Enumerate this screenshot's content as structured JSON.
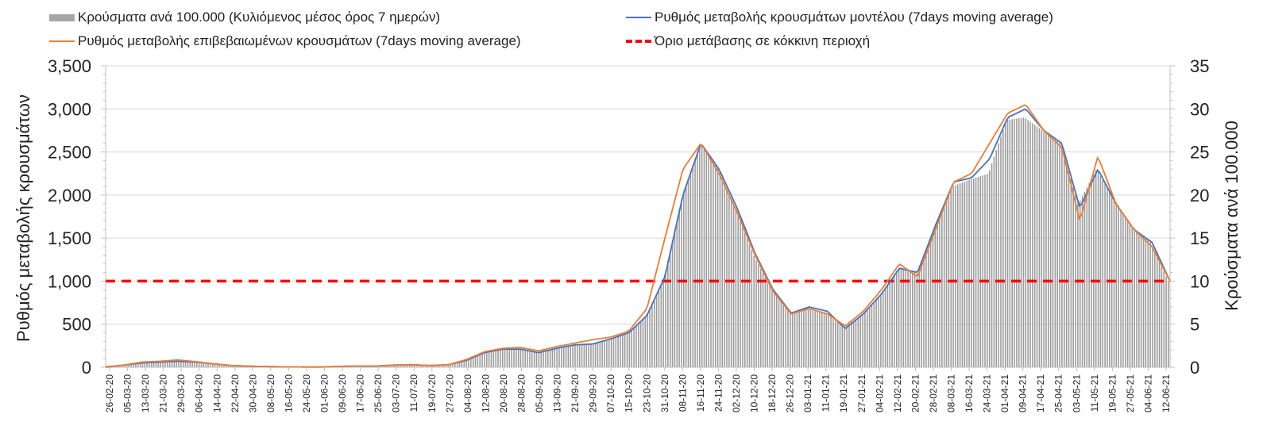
{
  "legend": {
    "bars": "Κρούσματα ανά 100.000 (Κυλιόμενος μέσος όρος 7 ημερών)",
    "blue": "Ρυθμός μεταβολής κρουσμάτων μοντέλου (7days moving average)",
    "orange": "Ρυθμός μεταβολής επιβεβαιωμένων κρουσμάτων (7days moving average)",
    "red": "Όριο μετάβασης σε κόκκινη περιοχή"
  },
  "chart_data": {
    "type": "bar+line",
    "ylabel_left": "Ρυθμός μεταβολής κρουσμάτων",
    "ylabel_right": "Κρούσματα ανά 100.000",
    "ylim_left": [
      0,
      3500
    ],
    "ylim_right": [
      0,
      35
    ],
    "yticks_left": [
      "0",
      "500",
      "1,000",
      "1,500",
      "2,000",
      "2,500",
      "3,000",
      "3,500"
    ],
    "yticks_right": [
      "0",
      "5",
      "10",
      "15",
      "20",
      "25",
      "30",
      "35"
    ],
    "x_ticks": [
      "26-02-20",
      "05-03-20",
      "13-03-20",
      "21-03-20",
      "29-03-20",
      "06-04-20",
      "14-04-20",
      "22-04-20",
      "30-04-20",
      "08-05-20",
      "16-05-20",
      "24-05-20",
      "01-06-20",
      "09-06-20",
      "17-06-20",
      "25-06-20",
      "03-07-20",
      "11-07-20",
      "19-07-20",
      "27-07-20",
      "04-08-20",
      "12-08-20",
      "20-08-20",
      "28-08-20",
      "05-09-20",
      "13-09-20",
      "21-09-20",
      "29-09-20",
      "07-10-20",
      "15-10-20",
      "23-10-20",
      "31-10-20",
      "08-11-20",
      "16-11-20",
      "24-11-20",
      "02-12-20",
      "10-12-20",
      "18-12-20",
      "26-12-20",
      "03-01-21",
      "11-01-21",
      "19-01-21",
      "27-01-21",
      "04-02-21",
      "12-02-21",
      "20-02-21",
      "28-02-21",
      "08-03-21",
      "16-03-21",
      "24-03-21",
      "01-04-21",
      "09-04-21",
      "17-04-21",
      "25-04-21",
      "03-05-21",
      "11-05-21",
      "19-05-21",
      "27-05-21",
      "04-06-21",
      "12-06-21"
    ],
    "threshold": 1000,
    "series": [
      {
        "name": "Κρούσματα ανά 100.000 (bars, right axis)",
        "axis": "right",
        "style": "bar",
        "values": [
          0.1,
          0.3,
          0.6,
          0.6,
          0.7,
          0.6,
          0.4,
          0.2,
          0.1,
          0.1,
          0.1,
          0,
          0,
          0.1,
          0.2,
          0.2,
          0.3,
          0.3,
          0.2,
          0.3,
          0.8,
          1.7,
          2.1,
          2.1,
          1.7,
          2.2,
          2.6,
          2.7,
          3.3,
          4.0,
          6.0,
          10.5,
          20.0,
          26.0,
          23.0,
          18.2,
          12.8,
          9.0,
          6.3,
          6.7,
          6.2,
          4.7,
          6.0,
          8.3,
          11.5,
          11.0,
          16.0,
          21.0,
          21.8,
          22.5,
          28.7,
          29.0,
          27.5,
          26.0,
          19.0,
          23.0,
          19.5,
          16.3,
          14.5,
          10.0
        ]
      },
      {
        "name": "Ρυθμός μεταβολής κρουσμάτων μοντέλου",
        "axis": "left",
        "style": "line",
        "color": "#4472c4",
        "values": [
          5,
          25,
          50,
          60,
          70,
          60,
          40,
          20,
          12,
          8,
          5,
          3,
          3,
          10,
          15,
          15,
          25,
          30,
          20,
          30,
          80,
          170,
          210,
          210,
          170,
          220,
          260,
          270,
          330,
          400,
          600,
          1050,
          2000,
          2600,
          2300,
          1850,
          1320,
          900,
          630,
          700,
          650,
          450,
          620,
          850,
          1150,
          1100,
          1650,
          2150,
          2200,
          2420,
          2900,
          3000,
          2750,
          2600,
          1850,
          2300,
          1900,
          1600,
          1450,
          1000
        ]
      },
      {
        "name": "Ρυθμός μεταβολής επιβεβαιωμένων κρουσμάτων",
        "axis": "left",
        "style": "line",
        "color": "#ed7d31",
        "values": [
          0,
          25,
          60,
          70,
          85,
          65,
          40,
          20,
          12,
          8,
          5,
          3,
          3,
          10,
          15,
          15,
          25,
          30,
          20,
          30,
          90,
          180,
          220,
          230,
          190,
          240,
          280,
          320,
          350,
          420,
          680,
          1500,
          2300,
          2600,
          2250,
          1800,
          1300,
          880,
          620,
          680,
          620,
          480,
          650,
          900,
          1200,
          1050,
          1600,
          2150,
          2250,
          2600,
          2950,
          3050,
          2750,
          2550,
          1700,
          2450,
          1900,
          1600,
          1400,
          1000
        ]
      }
    ]
  }
}
